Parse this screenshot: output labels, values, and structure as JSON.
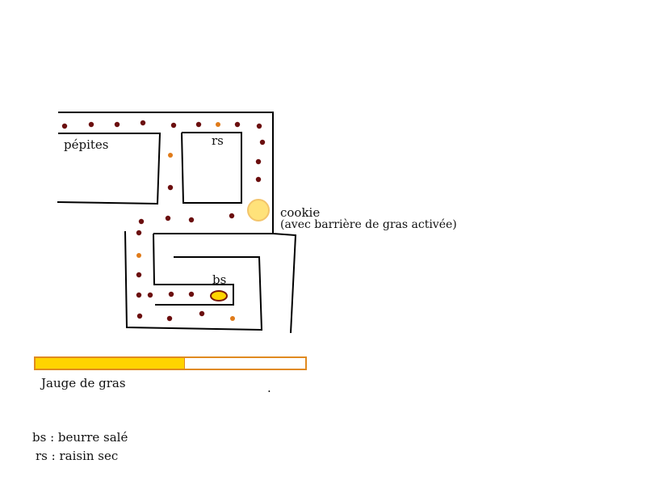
{
  "labels": {
    "pepites": "pépites",
    "rs": "rs",
    "cookie": "cookie",
    "cookie_note": "(avec barrière de gras activée)",
    "bs": "bs",
    "gauge": "Jauge de gras",
    "dot": "."
  },
  "legend": {
    "bs": "bs : beurre salé",
    "rs": "rs : raisin sec"
  },
  "gauge": {
    "level": 0.55
  },
  "colors": {
    "pepite": "#6b0f0f",
    "raisin": "#e07b1a",
    "cookie_fill": "#ffe27a",
    "cookie_outline": "#f3c46a",
    "butter_fill": "#ffd400",
    "butter_outline": "#7a1a0a",
    "gauge_fill": "#ffd400",
    "gauge_border": "#e08a20",
    "wall": "#000000"
  }
}
